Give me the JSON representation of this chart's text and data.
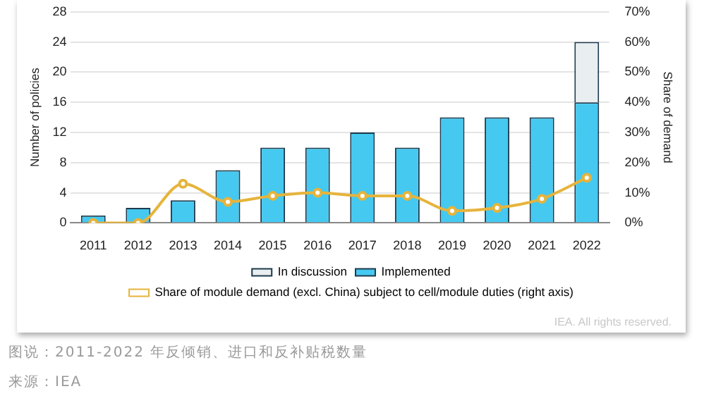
{
  "chart_data": {
    "type": "bar",
    "categories": [
      "2011",
      "2012",
      "2013",
      "2014",
      "2015",
      "2016",
      "2017",
      "2018",
      "2019",
      "2020",
      "2021",
      "2022"
    ],
    "series": [
      {
        "name": "In discussion",
        "color": "#e9eef1",
        "values": [
          0,
          0,
          0,
          0,
          0,
          0,
          0,
          0,
          0,
          0,
          0,
          8
        ]
      },
      {
        "name": "Implemented",
        "color": "#45c9f1",
        "values": [
          1,
          2,
          3,
          7,
          10,
          10,
          12,
          10,
          14,
          14,
          14,
          16
        ]
      },
      {
        "name": "Share of module demand (excl. China) subject to cell/module duties (right axis)",
        "type": "line",
        "axis": "y2",
        "color": "#e6b43c",
        "values": [
          0,
          0,
          13,
          7,
          9,
          10,
          9,
          9,
          4,
          5,
          8,
          15
        ]
      }
    ],
    "stacked": true,
    "ylabel": "Number of policies",
    "y2label": "Share of demand",
    "ylim": [
      0,
      28
    ],
    "yticks": [
      0,
      4,
      8,
      12,
      16,
      20,
      24,
      28
    ],
    "y2lim": [
      0,
      70
    ],
    "y2ticks": [
      {
        "value": 0,
        "label": "0%"
      },
      {
        "value": 10,
        "label": "10%"
      },
      {
        "value": 20,
        "label": "20%"
      },
      {
        "value": 30,
        "label": "30%"
      },
      {
        "value": 40,
        "label": "40%"
      },
      {
        "value": 50,
        "label": "50%"
      },
      {
        "value": 60,
        "label": "60%"
      },
      {
        "value": 70,
        "label": "70%"
      }
    ],
    "grid": "y",
    "legend": "bottom",
    "marker": "circle",
    "line_style": "solid",
    "annotations": [
      "IEA. All rights reserved.",
      "图说：2011-2022 年反倾销、进口和反补贴税数量",
      "来源：IEA"
    ]
  }
}
